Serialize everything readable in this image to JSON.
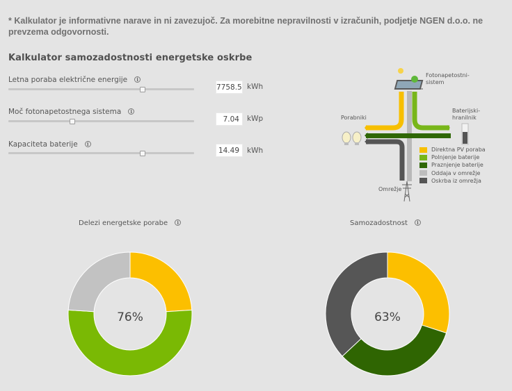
{
  "disclaimer": "* Kalkulator je informativne narave in ni zavezujoč. Za morebitne nepravilnosti v izračunih, podjetje NGEN d.o.o. ne prevzema odgovornosti.",
  "calculator": {
    "title": "Kalkulator samozadostnosti energetske oskrbe",
    "rows": [
      {
        "label": "Letna poraba električne energije",
        "value": "7758.5",
        "unit": "kWh",
        "slider_fraction": 0.72
      },
      {
        "label": "Moč fotonapetostnega sistema",
        "value": "7.04",
        "unit": "kWp",
        "slider_fraction": 0.34
      },
      {
        "label": "Kapaciteta baterije",
        "value": "14.49",
        "unit": "kWh",
        "slider_fraction": 0.72
      }
    ]
  },
  "diagram": {
    "labels": {
      "pv": "Fotonapetostni-\nsistem",
      "consumers": "Porabniki",
      "battery": "Baterijski-\nhranilnik",
      "grid": "Omrežje"
    },
    "legend": [
      {
        "label": "Direktna PV poraba",
        "color": "#f7bf00"
      },
      {
        "label": "Polnjenje baterije",
        "color": "#78b61a"
      },
      {
        "label": "Praznjenje baterije",
        "color": "#2f6705"
      },
      {
        "label": "Oddaja v omrežje",
        "color": "#bdbdbd"
      },
      {
        "label": "Oskrba iz omrežja",
        "color": "#555555"
      }
    ]
  },
  "chart_data": [
    {
      "type": "pie",
      "title": "Delezi energetske porabe",
      "center_label": "76%",
      "slices": [
        {
          "value": 24,
          "color": "#fcbf00"
        },
        {
          "value": 52,
          "color": "#7ab904"
        },
        {
          "value": 24,
          "color": "#c2c2c2"
        }
      ]
    },
    {
      "type": "pie",
      "title": "Samozadostnost",
      "center_label": "63%",
      "slices": [
        {
          "value": 30,
          "color": "#fcbf00"
        },
        {
          "value": 33,
          "color": "#2f6502"
        },
        {
          "value": 37,
          "color": "#565656"
        }
      ]
    }
  ]
}
